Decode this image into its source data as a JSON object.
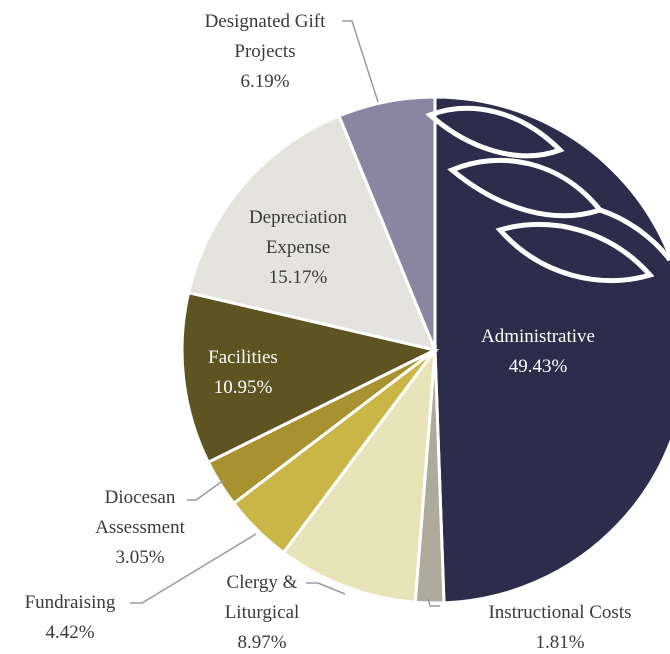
{
  "chart_data": {
    "type": "pie",
    "categories": [
      "Administrative",
      "Instructional Costs",
      "Clergy & Liturgical",
      "Fundraising",
      "Diocesan Assessment",
      "Facilities",
      "Depreciation Expense",
      "Designated Gift Projects"
    ],
    "values": [
      49.43,
      1.81,
      8.97,
      4.42,
      3.05,
      10.95,
      15.17,
      6.19
    ],
    "value_labels": [
      "49.43%",
      "1.81%",
      "8.97%",
      "4.42%",
      "3.05%",
      "10.95%",
      "15.17%",
      "6.19%"
    ],
    "colors": [
      "#2d2d4b",
      "#aeab9c",
      "#e9e3b9",
      "#c9b647",
      "#a8912f",
      "#5e5421",
      "#e5e3dd",
      "#8a85a1"
    ]
  }
}
